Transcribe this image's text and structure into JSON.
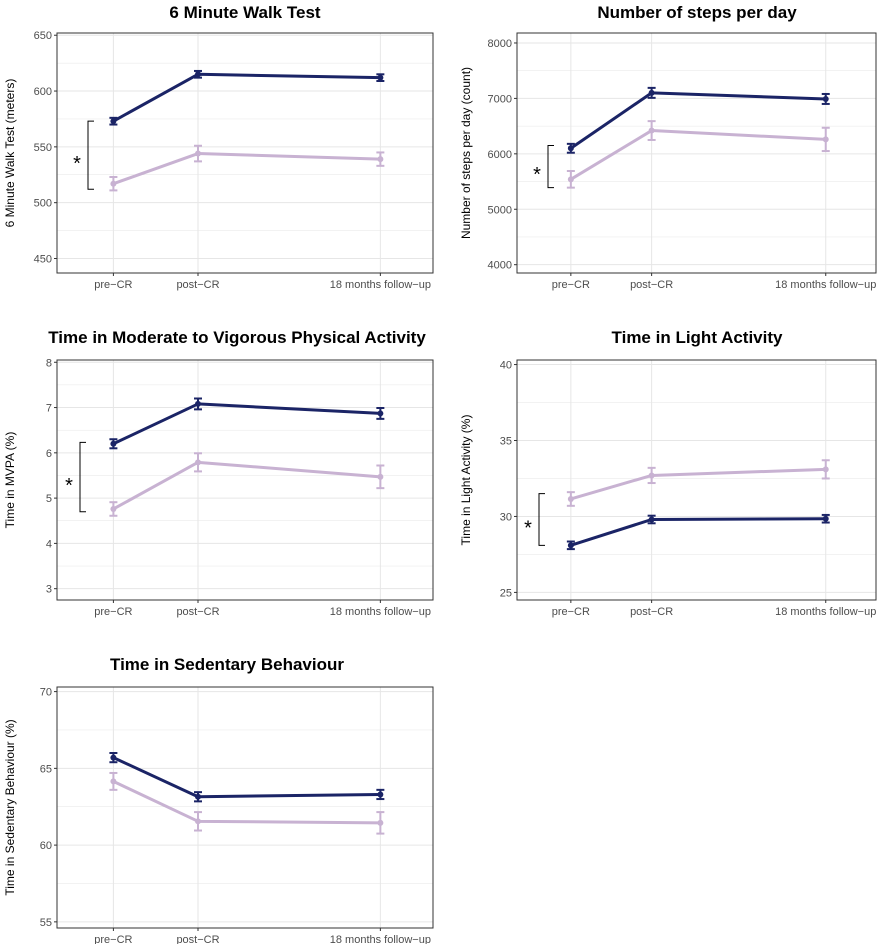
{
  "colors": {
    "dark": "#1b2466",
    "light": "#c8b2d2",
    "grid": "#e6e6e6",
    "frame": "#333333"
  },
  "chart_data": [
    {
      "type": "line",
      "title": "6 Minute Walk Test",
      "ylabel": "6 Minute Walk Test (meters)",
      "categories": [
        "pre−CR",
        "post−CR",
        "18 months follow−up"
      ],
      "ylim": [
        437,
        652
      ],
      "yticks": [
        "450",
        "500",
        "550",
        "600",
        "650"
      ],
      "annotation": "*",
      "series": [
        {
          "values": [
            573,
            615,
            612
          ],
          "err": [
            3,
            3,
            3
          ]
        },
        {
          "values": [
            517,
            544,
            539
          ],
          "err": [
            6,
            7,
            6
          ]
        }
      ]
    },
    {
      "type": "line",
      "title": "Number of steps per day",
      "ylabel": "Number of steps per day (count)",
      "categories": [
        "pre−CR",
        "post−CR",
        "18 months follow−up"
      ],
      "ylim": [
        3850,
        8180
      ],
      "yticks": [
        "4000",
        "5000",
        "6000",
        "7000",
        "8000"
      ],
      "annotation": "*",
      "series": [
        {
          "values": [
            6100,
            7100,
            6990
          ],
          "err": [
            80,
            90,
            90
          ]
        },
        {
          "values": [
            5540,
            6420,
            6260
          ],
          "err": [
            150,
            170,
            210
          ]
        }
      ]
    },
    {
      "type": "line",
      "title": "Time in Moderate to Vigorous Physical Activity",
      "ylabel": "Time in MVPA (%)",
      "categories": [
        "pre−CR",
        "post−CR",
        "18 months follow−up"
      ],
      "ylim": [
        2.75,
        8.05
      ],
      "yticks": [
        "3",
        "4",
        "5",
        "6",
        "7",
        "8"
      ],
      "annotation": "*",
      "series": [
        {
          "values": [
            6.2,
            7.08,
            6.87
          ],
          "err": [
            0.1,
            0.12,
            0.12
          ]
        },
        {
          "values": [
            4.76,
            5.79,
            5.47
          ],
          "err": [
            0.15,
            0.2,
            0.25
          ]
        }
      ]
    },
    {
      "type": "line",
      "title": "Time in Light Activity",
      "ylabel": "Time in Light Activity (%)",
      "categories": [
        "pre−CR",
        "post−CR",
        "18 months follow−up"
      ],
      "ylim": [
        24.5,
        40.3
      ],
      "yticks": [
        "25",
        "30",
        "35",
        "40"
      ],
      "annotation": "*",
      "series": [
        {
          "values": [
            28.1,
            29.8,
            29.85
          ],
          "err": [
            0.25,
            0.25,
            0.25
          ]
        },
        {
          "values": [
            31.15,
            32.7,
            33.1
          ],
          "err": [
            0.45,
            0.5,
            0.6
          ]
        }
      ]
    },
    {
      "type": "line",
      "title": "Time in Sedentary Behaviour",
      "ylabel": "Time in Sedentary Behaviour (%)",
      "categories": [
        "pre−CR",
        "post−CR",
        "18 months follow−up"
      ],
      "ylim": [
        54.6,
        70.3
      ],
      "yticks": [
        "55",
        "60",
        "65",
        "70"
      ],
      "annotation": "",
      "series": [
        {
          "values": [
            65.7,
            63.15,
            63.3
          ],
          "err": [
            0.3,
            0.3,
            0.3
          ]
        },
        {
          "values": [
            64.15,
            61.55,
            61.45
          ],
          "err": [
            0.55,
            0.6,
            0.7
          ]
        }
      ]
    }
  ]
}
